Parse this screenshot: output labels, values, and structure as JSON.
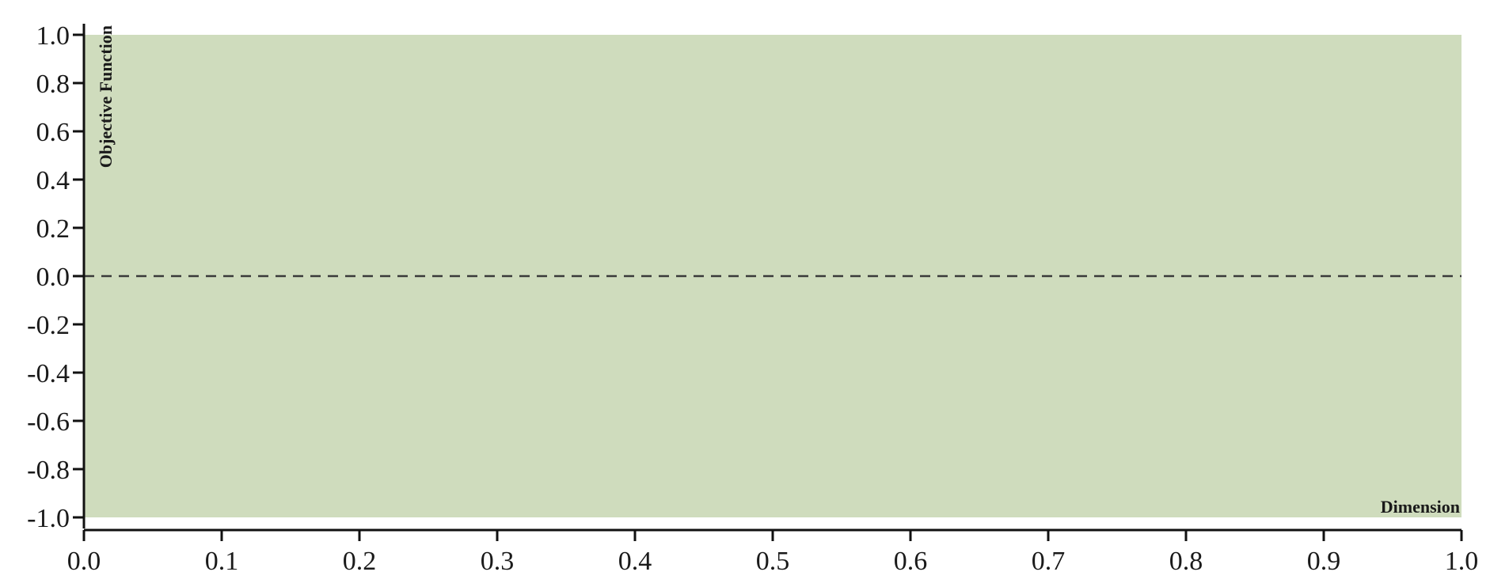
{
  "chart_data": {
    "type": "line",
    "title": "",
    "xlabel": "Dimension",
    "ylabel": "Objective Function",
    "xlim": [
      0.0,
      1.0
    ],
    "ylim": [
      -1.0,
      1.0
    ],
    "x_ticks": [
      "0.0",
      "0.1",
      "0.2",
      "0.3",
      "0.4",
      "0.5",
      "0.6",
      "0.7",
      "0.8",
      "0.9",
      "1.0"
    ],
    "y_ticks": [
      "1.0",
      "0.8",
      "0.6",
      "0.4",
      "0.2",
      "0.0",
      "-0.2",
      "-0.4",
      "-0.6",
      "-0.8",
      "-1.0"
    ],
    "shaded_region": {
      "x": [
        0.0,
        1.0
      ],
      "y": [
        -1.0,
        1.0
      ],
      "color": "#cfdcbd"
    },
    "reference_line": {
      "y": 0.0,
      "style": "dashed",
      "color": "#3a3a3a"
    },
    "grid": false,
    "colors": {
      "axis": "#111111",
      "text": "#1a1a1a"
    }
  }
}
